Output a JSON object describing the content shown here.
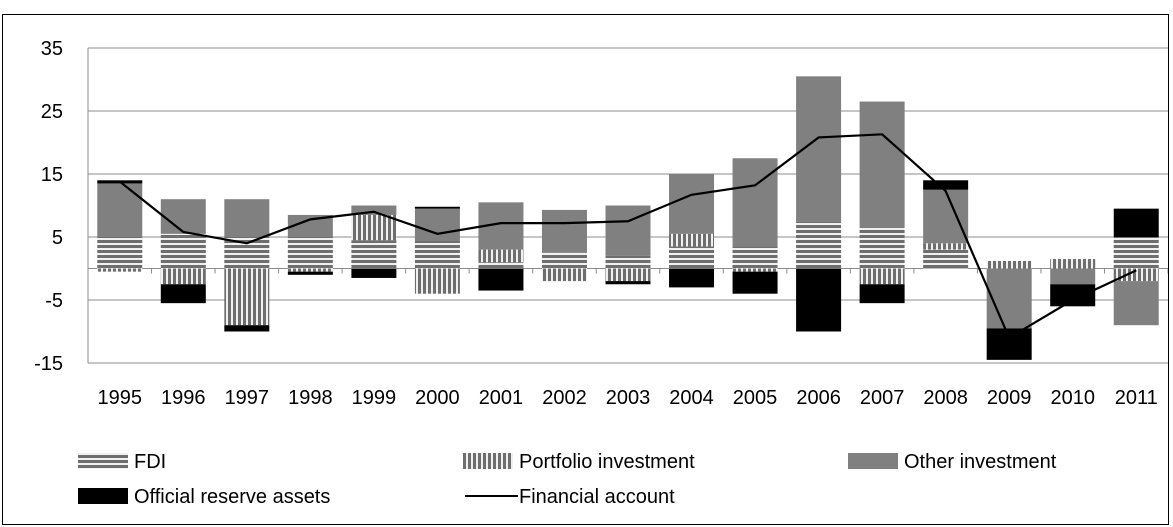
{
  "chart_data": {
    "type": "bar",
    "stacked": true,
    "categories": [
      "1995",
      "1996",
      "1997",
      "1998",
      "1999",
      "2000",
      "2001",
      "2002",
      "2003",
      "2004",
      "2005",
      "2006",
      "2007",
      "2008",
      "2009",
      "2010",
      "2011"
    ],
    "series": [
      {
        "name": "FDI",
        "kind": "bar",
        "pattern": "horizontal-stripes",
        "values": [
          5,
          5.5,
          5,
          5,
          4.5,
          4.5,
          1,
          2.5,
          2,
          3.5,
          3.5,
          7.5,
          6.5,
          3,
          0,
          0,
          5
        ]
      },
      {
        "name": "Portfolio investment",
        "kind": "bar",
        "pattern": "vertical-stripes",
        "values": [
          -0.5,
          -2.5,
          -9,
          -0.5,
          4,
          -4,
          2,
          -2,
          -2,
          2,
          -0.5,
          0,
          -2.5,
          1,
          1.2,
          1.5,
          -2
        ]
      },
      {
        "name": "Other investment",
        "kind": "bar",
        "pattern": "gray",
        "values": [
          8.5,
          5.5,
          6,
          3.5,
          1.5,
          5,
          7.5,
          6.8,
          8,
          9.5,
          14,
          23,
          20,
          8.5,
          -9.5,
          -2.5,
          -7
        ]
      },
      {
        "name": "Official reserve assets",
        "kind": "bar",
        "pattern": "black",
        "values": [
          0.5,
          -3,
          -1,
          -0.5,
          -1.5,
          0.3,
          -3.5,
          0,
          -0.5,
          -3,
          -3.5,
          -10,
          -3,
          1.5,
          -5,
          -3.5,
          4.5
        ]
      },
      {
        "name": "Financial account",
        "kind": "line",
        "values": [
          13.8,
          5.8,
          4,
          7.8,
          9,
          5.5,
          7.2,
          7.2,
          7.5,
          11.7,
          13.2,
          20.8,
          21.3,
          12.3,
          -11,
          -5,
          -0.3
        ]
      }
    ],
    "yticks": [
      35,
      25,
      15,
      5,
      -5,
      -15
    ],
    "ylim": [
      -15,
      35
    ],
    "grid": true,
    "legend_position": "bottom",
    "colors": {
      "gray": "#808080",
      "black": "#000000",
      "stripe": "#ffffff",
      "line": "#000000",
      "grid": "#8c8c8c"
    }
  }
}
